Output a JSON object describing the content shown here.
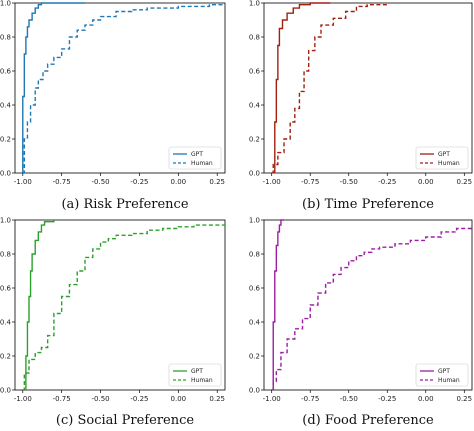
{
  "chart_data": [
    {
      "type": "line",
      "caption": "(a) Risk Preference",
      "xlim": [
        -1.05,
        0.3
      ],
      "ylim": [
        0,
        1.0
      ],
      "xticks": [
        "-1.00",
        "-0.75",
        "-0.50",
        "-0.25",
        "0.00",
        "0.25"
      ],
      "yticks": [
        "0.0",
        "0.2",
        "0.4",
        "0.6",
        "0.8",
        "1.0"
      ],
      "grid": false,
      "legend_position": "bottom-right",
      "series": [
        {
          "name": "GPT",
          "color": "#1f77b4",
          "style": "solid",
          "points": [
            [
              -1.0,
              0.0
            ],
            [
              -1.0,
              0.45
            ],
            [
              -0.99,
              0.7
            ],
            [
              -0.98,
              0.8
            ],
            [
              -0.97,
              0.86
            ],
            [
              -0.96,
              0.9
            ],
            [
              -0.94,
              0.94
            ],
            [
              -0.92,
              0.97
            ],
            [
              -0.9,
              0.99
            ],
            [
              -0.88,
              1.0
            ],
            [
              -0.6,
              1.0
            ]
          ]
        },
        {
          "name": "Human",
          "color": "#1f77b4",
          "style": "dashed",
          "points": [
            [
              -1.0,
              0.0
            ],
            [
              -0.99,
              0.2
            ],
            [
              -0.97,
              0.3
            ],
            [
              -0.95,
              0.4
            ],
            [
              -0.92,
              0.5
            ],
            [
              -0.9,
              0.55
            ],
            [
              -0.87,
              0.6
            ],
            [
              -0.84,
              0.64
            ],
            [
              -0.8,
              0.68
            ],
            [
              -0.75,
              0.73
            ],
            [
              -0.7,
              0.8
            ],
            [
              -0.65,
              0.84
            ],
            [
              -0.6,
              0.87
            ],
            [
              -0.55,
              0.9
            ],
            [
              -0.5,
              0.92
            ],
            [
              -0.4,
              0.95
            ],
            [
              -0.3,
              0.96
            ],
            [
              -0.2,
              0.97
            ],
            [
              0.0,
              0.98
            ],
            [
              0.2,
              0.99
            ],
            [
              0.3,
              0.99
            ]
          ]
        }
      ]
    },
    {
      "type": "line",
      "caption": "(b) Time Preference",
      "xlim": [
        -1.05,
        0.3
      ],
      "ylim": [
        0,
        1.0
      ],
      "xticks": [
        "-1.00",
        "-0.75",
        "-0.50",
        "-0.25",
        "0.00",
        "0.25"
      ],
      "yticks": [
        "0.0",
        "0.2",
        "0.4",
        "0.6",
        "0.8",
        "1.0"
      ],
      "grid": false,
      "legend_position": "bottom-right",
      "series": [
        {
          "name": "GPT",
          "color": "#a02010",
          "style": "solid",
          "points": [
            [
              -0.98,
              0.0
            ],
            [
              -0.98,
              0.3
            ],
            [
              -0.97,
              0.55
            ],
            [
              -0.96,
              0.75
            ],
            [
              -0.95,
              0.85
            ],
            [
              -0.93,
              0.9
            ],
            [
              -0.9,
              0.94
            ],
            [
              -0.86,
              0.97
            ],
            [
              -0.82,
              0.99
            ],
            [
              -0.75,
              1.0
            ],
            [
              -0.62,
              1.0
            ]
          ]
        },
        {
          "name": "Human",
          "color": "#a02010",
          "style": "dashed",
          "points": [
            [
              -1.0,
              0.0
            ],
            [
              -0.99,
              0.05
            ],
            [
              -0.96,
              0.12
            ],
            [
              -0.92,
              0.2
            ],
            [
              -0.88,
              0.3
            ],
            [
              -0.85,
              0.38
            ],
            [
              -0.82,
              0.48
            ],
            [
              -0.79,
              0.6
            ],
            [
              -0.76,
              0.72
            ],
            [
              -0.72,
              0.8
            ],
            [
              -0.68,
              0.87
            ],
            [
              -0.6,
              0.91
            ],
            [
              -0.52,
              0.95
            ],
            [
              -0.45,
              0.98
            ],
            [
              -0.38,
              0.99
            ],
            [
              -0.25,
              0.99
            ]
          ]
        }
      ]
    },
    {
      "type": "line",
      "caption": "(c) Social Preference",
      "xlim": [
        -1.05,
        0.3
      ],
      "ylim": [
        0,
        1.0
      ],
      "xticks": [
        "-1.00",
        "-0.75",
        "-0.50",
        "-0.25",
        "0.00",
        "0.25"
      ],
      "yticks": [
        "0.0",
        "0.2",
        "0.4",
        "0.6",
        "0.8",
        "1.0"
      ],
      "grid": false,
      "legend_position": "bottom-right",
      "series": [
        {
          "name": "GPT",
          "color": "#2ca02c",
          "style": "solid",
          "points": [
            [
              -0.99,
              0.0
            ],
            [
              -0.98,
              0.2
            ],
            [
              -0.97,
              0.4
            ],
            [
              -0.96,
              0.55
            ],
            [
              -0.95,
              0.7
            ],
            [
              -0.94,
              0.8
            ],
            [
              -0.92,
              0.88
            ],
            [
              -0.9,
              0.93
            ],
            [
              -0.88,
              0.97
            ],
            [
              -0.86,
              0.99
            ],
            [
              -0.8,
              1.0
            ]
          ]
        },
        {
          "name": "Human",
          "color": "#2ca02c",
          "style": "dashed",
          "points": [
            [
              -1.0,
              0.0
            ],
            [
              -0.99,
              0.1
            ],
            [
              -0.96,
              0.18
            ],
            [
              -0.92,
              0.22
            ],
            [
              -0.88,
              0.25
            ],
            [
              -0.84,
              0.32
            ],
            [
              -0.8,
              0.45
            ],
            [
              -0.75,
              0.55
            ],
            [
              -0.7,
              0.62
            ],
            [
              -0.65,
              0.7
            ],
            [
              -0.6,
              0.78
            ],
            [
              -0.55,
              0.83
            ],
            [
              -0.5,
              0.87
            ],
            [
              -0.45,
              0.89
            ],
            [
              -0.4,
              0.91
            ],
            [
              -0.3,
              0.92
            ],
            [
              -0.2,
              0.94
            ],
            [
              -0.1,
              0.95
            ],
            [
              0.0,
              0.96
            ],
            [
              0.1,
              0.97
            ],
            [
              0.3,
              0.99
            ]
          ]
        }
      ]
    },
    {
      "type": "line",
      "caption": "(d) Food Preference",
      "xlim": [
        -1.05,
        0.3
      ],
      "ylim": [
        0,
        1.0
      ],
      "xticks": [
        "-1.00",
        "-0.75",
        "-0.50",
        "-0.25",
        "0.00",
        "0.25"
      ],
      "yticks": [
        "0.0",
        "0.2",
        "0.4",
        "0.6",
        "0.8",
        "1.0"
      ],
      "grid": false,
      "legend_position": "bottom-right",
      "series": [
        {
          "name": "GPT",
          "color": "#9b1fa6",
          "style": "solid",
          "points": [
            [
              -1.0,
              0.0
            ],
            [
              -0.99,
              0.4
            ],
            [
              -0.98,
              0.7
            ],
            [
              -0.97,
              0.85
            ],
            [
              -0.96,
              0.93
            ],
            [
              -0.95,
              0.97
            ],
            [
              -0.94,
              1.0
            ],
            [
              -0.92,
              1.0
            ]
          ]
        },
        {
          "name": "Human",
          "color": "#9b1fa6",
          "style": "dashed",
          "points": [
            [
              -1.0,
              0.0
            ],
            [
              -0.99,
              0.05
            ],
            [
              -0.97,
              0.12
            ],
            [
              -0.94,
              0.22
            ],
            [
              -0.9,
              0.3
            ],
            [
              -0.85,
              0.36
            ],
            [
              -0.8,
              0.42
            ],
            [
              -0.75,
              0.5
            ],
            [
              -0.7,
              0.57
            ],
            [
              -0.65,
              0.63
            ],
            [
              -0.6,
              0.68
            ],
            [
              -0.55,
              0.72
            ],
            [
              -0.5,
              0.76
            ],
            [
              -0.45,
              0.79
            ],
            [
              -0.4,
              0.81
            ],
            [
              -0.35,
              0.83
            ],
            [
              -0.3,
              0.84
            ],
            [
              -0.2,
              0.86
            ],
            [
              -0.1,
              0.88
            ],
            [
              0.0,
              0.9
            ],
            [
              0.1,
              0.93
            ],
            [
              0.2,
              0.95
            ],
            [
              0.3,
              0.97
            ]
          ]
        }
      ]
    }
  ]
}
